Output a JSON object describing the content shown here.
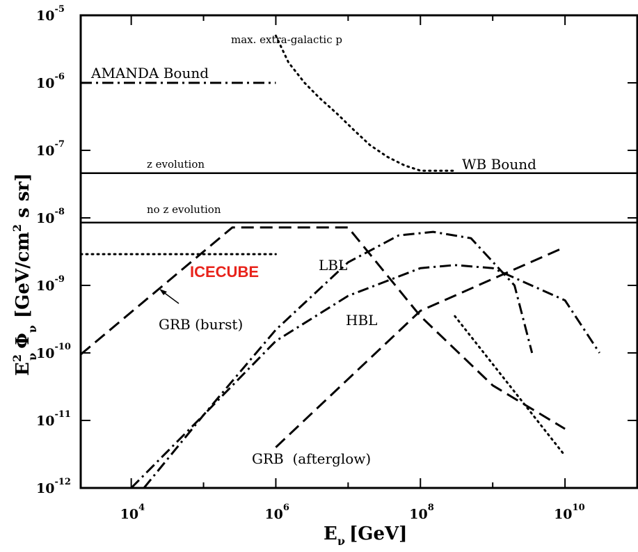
{
  "chart_data": {
    "type": "line",
    "title": "",
    "xlabel": {
      "main": "E",
      "sub": "ν",
      "unit": "[GeV]"
    },
    "ylabel": {
      "main": "E",
      "sup": "2",
      "sub1": "ν",
      "phi": "Φ",
      "sub2": "ν",
      "unit_a": "[GeV/cm",
      "unit_sup": "2",
      "unit_b": " s sr]"
    },
    "xscale": "log",
    "yscale": "log",
    "xlim": [
      2000,
      100000000000
    ],
    "ylim": [
      1e-12,
      1e-05
    ],
    "x_ticks": [
      {
        "base": "10",
        "exp": "4",
        "value": 10000
      },
      {
        "base": "10",
        "exp": "6",
        "value": 1000000
      },
      {
        "base": "10",
        "exp": "8",
        "value": 100000000
      },
      {
        "base": "10",
        "exp": "10",
        "value": 10000000000
      }
    ],
    "y_ticks": [
      {
        "base": "10",
        "exp": "-5",
        "value": 1e-05
      },
      {
        "base": "10",
        "exp": "-6",
        "value": 1e-06
      },
      {
        "base": "10",
        "exp": "-7",
        "value": 1e-07
      },
      {
        "base": "10",
        "exp": "-8",
        "value": 1e-08
      },
      {
        "base": "10",
        "exp": "-9",
        "value": 1e-09
      },
      {
        "base": "10",
        "exp": "-10",
        "value": 1e-10
      },
      {
        "base": "10",
        "exp": "-11",
        "value": 1e-11
      },
      {
        "base": "10",
        "exp": "-12",
        "value": 1e-12
      }
    ],
    "grid": false,
    "legend": "none",
    "series": [
      {
        "name": "max. extra-galactic p",
        "style": "dotted",
        "x": [
          1000000,
          1500000,
          2500000,
          4000000,
          7000000,
          12000000,
          20000000,
          35000000,
          60000000,
          100000000,
          300000000
        ],
        "y": [
          5e-06,
          2e-06,
          1e-06,
          6e-07,
          3.5e-07,
          2e-07,
          1.2e-07,
          8e-08,
          6e-08,
          5e-08,
          5e-08
        ]
      },
      {
        "name": "AMANDA Bound",
        "style": "dashdot",
        "x": [
          2000,
          1000000
        ],
        "y": [
          1e-06,
          1e-06
        ]
      },
      {
        "name": "z evolution",
        "style": "solid",
        "x": [
          2000,
          100000000000
        ],
        "y": [
          4.6e-08,
          4.6e-08
        ]
      },
      {
        "name": "WB Bound",
        "style": "none",
        "x": [],
        "y": []
      },
      {
        "name": "no z evolution",
        "style": "solid",
        "x": [
          2000,
          100000000000
        ],
        "y": [
          8.5e-09,
          8.5e-09
        ]
      },
      {
        "name": "ICECUBE",
        "style": "dotted",
        "x": [
          2000,
          1000000
        ],
        "y": [
          2.9e-09,
          2.9e-09
        ]
      },
      {
        "name": "GRB (burst)",
        "style": "dashed",
        "x": [
          2000,
          250000,
          10000000,
          100000000,
          1000000000,
          10000000000
        ],
        "y": [
          9.5e-11,
          7.2e-09,
          7.2e-09,
          3.5e-10,
          3.3e-11,
          7.5e-12
        ]
      },
      {
        "name": "LBL",
        "style": "dashdot",
        "x": [
          15000,
          100000,
          1000000,
          10000000,
          50000000,
          150000000,
          500000000,
          2000000000,
          3500000000
        ],
        "y": [
          1e-12,
          1.2e-11,
          2.2e-10,
          2.2e-09,
          5.5e-09,
          6.2e-09,
          5e-09,
          1e-09,
          1e-10
        ]
      },
      {
        "name": "HBL",
        "style": "dashdot",
        "x": [
          10000,
          100000,
          1000000,
          10000000,
          100000000,
          300000000,
          1000000000,
          10000000000,
          30000000000
        ],
        "y": [
          1e-12,
          1.2e-11,
          1.5e-10,
          7e-10,
          1.8e-09,
          2e-09,
          1.8e-09,
          6e-10,
          1e-10
        ]
      },
      {
        "name": "GRB (afterglow)",
        "style": "dashed",
        "x": [
          1000000,
          100000000,
          10000000000
        ],
        "y": [
          4e-12,
          4.2e-10,
          3.7e-09
        ]
      },
      {
        "name": "",
        "style": "dotted",
        "x": [
          300000000,
          10000000000
        ],
        "y": [
          3.5e-10,
          3e-12
        ]
      }
    ],
    "labels": {
      "max_p": "max. extra-galactic p",
      "amanda": "AMANDA Bound",
      "z_evolution": "z evolution",
      "wb": "WB Bound",
      "no_z_evolution": "no z evolution",
      "icecube": "ICECUBE",
      "lbl": "LBL",
      "hbl": "HBL",
      "grb_burst": "GRB (burst)",
      "grb_afterglow": "GRB  (afterglow)"
    },
    "colors": {
      "ink": "#000000",
      "icecube": "#e8231b",
      "background": "#ffffff"
    }
  }
}
